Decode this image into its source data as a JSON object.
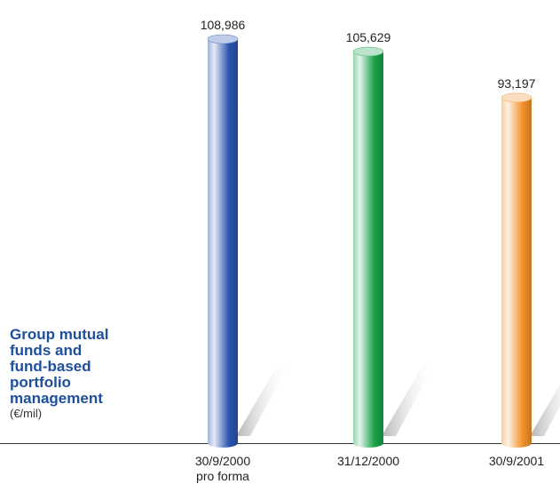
{
  "chart_data": {
    "type": "bar",
    "title": "Group mutual\nfunds and\nfund-based\nportfolio\nmanagement",
    "unit": "(€/mil)",
    "categories": [
      {
        "line1": "30/9/2000",
        "line2": "pro forma"
      },
      {
        "line1": "31/12/2000",
        "line2": ""
      },
      {
        "line1": "30/9/2001",
        "line2": ""
      }
    ],
    "values": [
      108986,
      105629,
      93197
    ],
    "value_labels": [
      "108,986",
      "105,629",
      "93,197"
    ],
    "colors": [
      "#2a56b0",
      "#1aa24a",
      "#f2922a"
    ],
    "ylim": [
      0,
      115000
    ],
    "grid": false,
    "legend": "none"
  }
}
